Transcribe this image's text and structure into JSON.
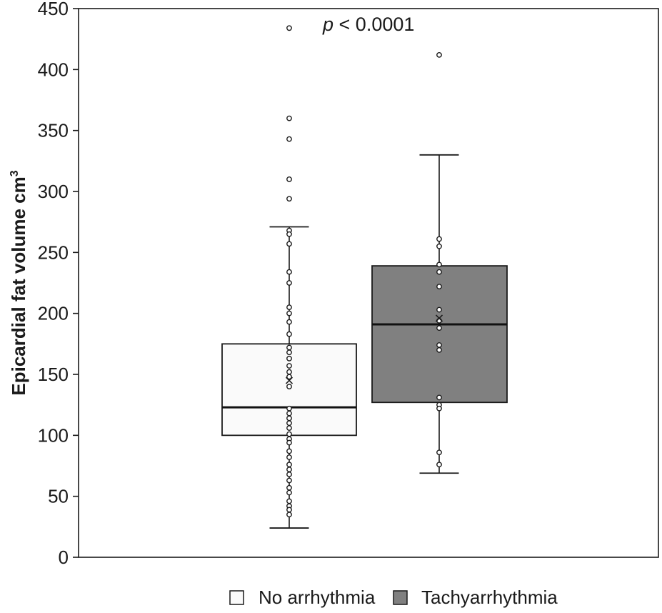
{
  "chart_data": {
    "type": "box",
    "ylabel": "Epicardial fat volume cm",
    "ylabel_superscript": "3",
    "ylim": [
      0,
      450
    ],
    "yticks": [
      0,
      50,
      100,
      150,
      200,
      250,
      300,
      350,
      400,
      450
    ],
    "grid": false,
    "annotation": {
      "italic": "p",
      "text": " < 0.0001"
    },
    "legend_position": "bottom",
    "series": [
      {
        "name": "No arrhythmia",
        "color": "#fafafa",
        "whisker_low": 24,
        "q1": 100,
        "median": 123,
        "q3": 175,
        "whisker_high": 271,
        "mean": 145,
        "points": [
          434,
          360,
          343,
          310,
          294,
          268,
          265,
          257,
          234,
          225,
          205,
          200,
          193,
          183,
          172,
          168,
          163,
          157,
          152,
          148,
          140,
          122,
          118,
          114,
          110,
          106,
          101,
          97,
          94,
          87,
          82,
          76,
          72,
          68,
          63,
          57,
          53,
          46,
          42,
          39,
          35
        ]
      },
      {
        "name": "Tachyarrhythmia",
        "color": "#808080",
        "whisker_low": 69,
        "q1": 127,
        "median": 191,
        "q3": 239,
        "whisker_high": 330,
        "mean": 196,
        "points": [
          412,
          261,
          255,
          240,
          234,
          222,
          203,
          194,
          188,
          174,
          170,
          131,
          125,
          122,
          86,
          76
        ]
      }
    ]
  }
}
